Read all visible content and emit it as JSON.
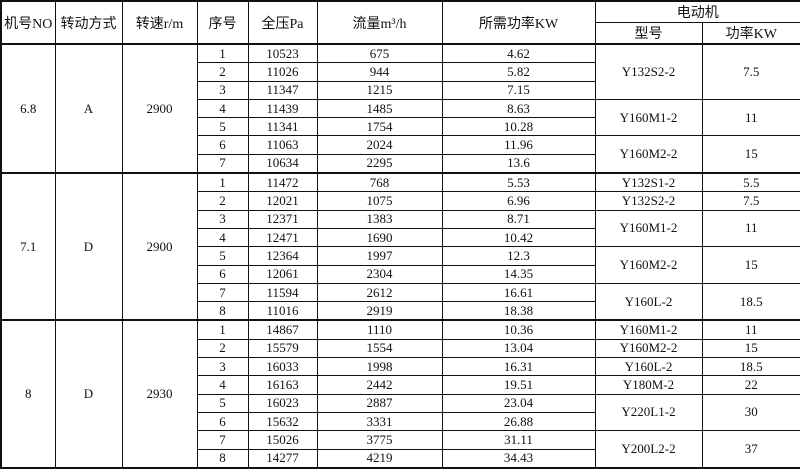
{
  "header": {
    "model_no": "机号NO",
    "drive": "转动方式",
    "speed": "转速r/m",
    "seq": "序号",
    "pressure": "全压Pa",
    "flow": "流量m³/h",
    "required_power": "所需功率KW",
    "motor": "电动机",
    "motor_model": "型号",
    "motor_power": "功率KW"
  },
  "groups": [
    {
      "model_no": "6.8",
      "drive": "A",
      "speed": "2900",
      "rows": [
        {
          "seq": "1",
          "pressure": "10523",
          "flow": "675",
          "power": "4.62",
          "motor_model": "Y132S2-2",
          "motor_power": "7.5"
        },
        {
          "seq": "2",
          "pressure": "11026",
          "flow": "944",
          "power": "5.82",
          "motor_model": "Y132S2-2",
          "motor_power": "7.5"
        },
        {
          "seq": "3",
          "pressure": "11347",
          "flow": "1215",
          "power": "7.15",
          "motor_model": "Y132S2-2",
          "motor_power": "7.5"
        },
        {
          "seq": "4",
          "pressure": "11439",
          "flow": "1485",
          "power": "8.63",
          "motor_model": "Y160M1-2",
          "motor_power": "11"
        },
        {
          "seq": "5",
          "pressure": "11341",
          "flow": "1754",
          "power": "10.28",
          "motor_model": "Y160M1-2",
          "motor_power": "11"
        },
        {
          "seq": "6",
          "pressure": "11063",
          "flow": "2024",
          "power": "11.96",
          "motor_model": "Y160M2-2",
          "motor_power": "15"
        },
        {
          "seq": "7",
          "pressure": "10634",
          "flow": "2295",
          "power": "13.6",
          "motor_model": "Y160M2-2",
          "motor_power": "15"
        }
      ]
    },
    {
      "model_no": "7.1",
      "drive": "D",
      "speed": "2900",
      "rows": [
        {
          "seq": "1",
          "pressure": "11472",
          "flow": "768",
          "power": "5.53",
          "motor_model": "Y132S1-2",
          "motor_power": "5.5"
        },
        {
          "seq": "2",
          "pressure": "12021",
          "flow": "1075",
          "power": "6.96",
          "motor_model": "Y132S2-2",
          "motor_power": "7.5"
        },
        {
          "seq": "3",
          "pressure": "12371",
          "flow": "1383",
          "power": "8.71",
          "motor_model": "Y160M1-2",
          "motor_power": "11"
        },
        {
          "seq": "4",
          "pressure": "12471",
          "flow": "1690",
          "power": "10.42",
          "motor_model": "Y160M1-2",
          "motor_power": "11"
        },
        {
          "seq": "5",
          "pressure": "12364",
          "flow": "1997",
          "power": "12.3",
          "motor_model": "Y160M2-2",
          "motor_power": "15"
        },
        {
          "seq": "6",
          "pressure": "12061",
          "flow": "2304",
          "power": "14.35",
          "motor_model": "Y160M2-2",
          "motor_power": "15"
        },
        {
          "seq": "7",
          "pressure": "11594",
          "flow": "2612",
          "power": "16.61",
          "motor_model": "Y160L-2",
          "motor_power": "18.5"
        },
        {
          "seq": "8",
          "pressure": "11016",
          "flow": "2919",
          "power": "18.38",
          "motor_model": "Y160L-2",
          "motor_power": "18.5"
        }
      ]
    },
    {
      "model_no": "8",
      "drive": "D",
      "speed": "2930",
      "rows": [
        {
          "seq": "1",
          "pressure": "14867",
          "flow": "1110",
          "power": "10.36",
          "motor_model": "Y160M1-2",
          "motor_power": "11"
        },
        {
          "seq": "2",
          "pressure": "15579",
          "flow": "1554",
          "power": "13.04",
          "motor_model": "Y160M2-2",
          "motor_power": "15"
        },
        {
          "seq": "3",
          "pressure": "16033",
          "flow": "1998",
          "power": "16.31",
          "motor_model": "Y160L-2",
          "motor_power": "18.5"
        },
        {
          "seq": "4",
          "pressure": "16163",
          "flow": "2442",
          "power": "19.51",
          "motor_model": "Y180M-2",
          "motor_power": "22"
        },
        {
          "seq": "5",
          "pressure": "16023",
          "flow": "2887",
          "power": "23.04",
          "motor_model": "Y220L1-2",
          "motor_power": "30"
        },
        {
          "seq": "6",
          "pressure": "15632",
          "flow": "3331",
          "power": "26.88",
          "motor_model": "Y220L1-2",
          "motor_power": "30"
        },
        {
          "seq": "7",
          "pressure": "15026",
          "flow": "3775",
          "power": "31.11",
          "motor_model": "Y200L2-2",
          "motor_power": "37"
        },
        {
          "seq": "8",
          "pressure": "14277",
          "flow": "4219",
          "power": "34.43",
          "motor_model": "Y200L2-2",
          "motor_power": "37"
        }
      ]
    }
  ]
}
